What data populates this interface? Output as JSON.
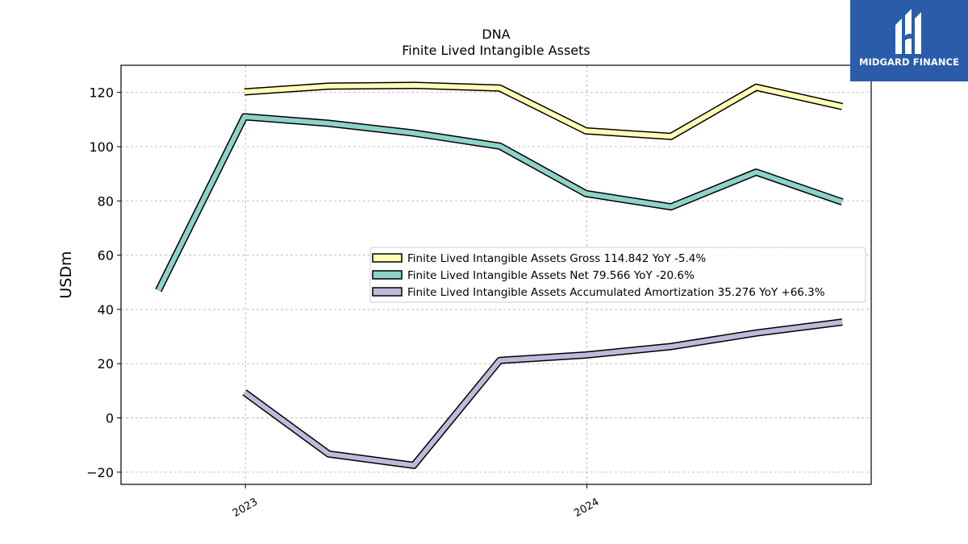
{
  "brand": {
    "name": "MIDGARD FINANCE",
    "color": "#2a5caa"
  },
  "chart_data": {
    "type": "line",
    "title": "DNA",
    "subtitle": "Finite Lived Intangible Assets",
    "xlabel": "",
    "ylabel": "USDm",
    "ylim": [
      -24.5,
      130
    ],
    "x_ticks": [
      "2023",
      "2024"
    ],
    "y_ticks": [
      -20,
      0,
      20,
      40,
      60,
      80,
      100,
      120
    ],
    "grid": true,
    "legend_position": "center-right",
    "x": [
      "2022-09-30",
      "2022-12-31",
      "2023-03-31",
      "2023-06-30",
      "2023-09-30",
      "2023-12-31",
      "2024-03-31",
      "2024-06-30",
      "2024-09-30"
    ],
    "series": [
      {
        "name": "Finite Lived Intangible Assets Gross",
        "legend_label": "Finite Lived Intangible Assets Gross  114.842 YoY -5.4%",
        "color": "#ffffb3",
        "values": [
          null,
          120.2,
          122.3,
          122.6,
          121.6,
          105.8,
          103.8,
          121.9,
          114.8
        ]
      },
      {
        "name": "Finite Lived Intangible Assets Net",
        "legend_label": "Finite Lived Intangible Assets Net  79.566 YoY -20.6%",
        "color": "#8dd3c7",
        "values": [
          47.0,
          111.0,
          108.6,
          105.0,
          100.2,
          82.7,
          77.8,
          90.6,
          79.6
        ]
      },
      {
        "name": "Finite Lived Intangible Assets Accumulated Amortization",
        "legend_label": "Finite Lived Intangible Assets Accumulated Amortization  35.276 YoY +66.3%",
        "color": "#bebada",
        "values": [
          null,
          9.4,
          -13.3,
          -17.5,
          21.2,
          23.2,
          26.3,
          31.3,
          35.3
        ]
      }
    ]
  }
}
